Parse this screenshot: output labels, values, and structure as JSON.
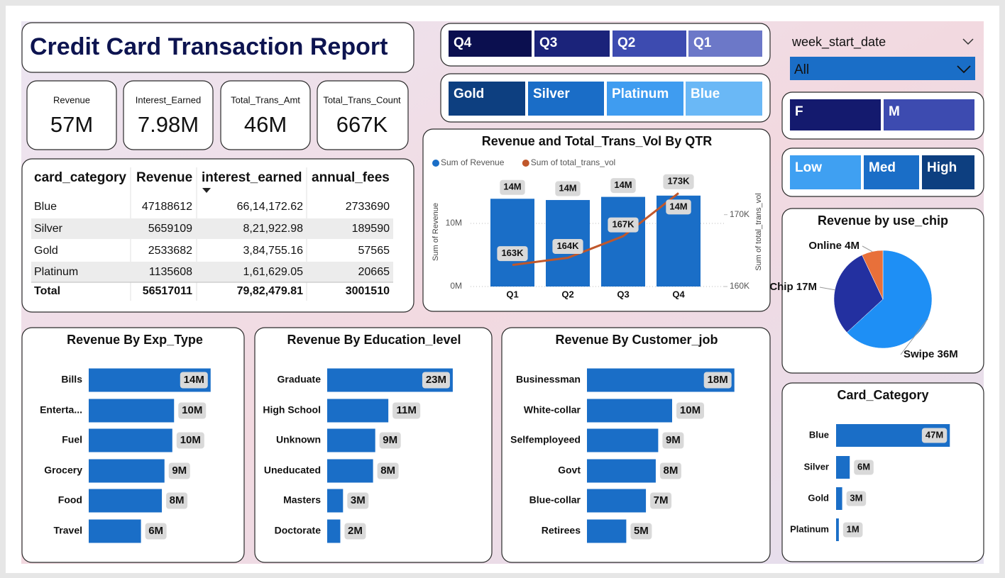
{
  "header": {
    "title": "Credit Card Transaction Report"
  },
  "kpis": [
    {
      "label": "Revenue",
      "value": "57M"
    },
    {
      "label": "Interest_Earned",
      "value": "7.98M"
    },
    {
      "label": "Total_Trans_Amt",
      "value": "46M"
    },
    {
      "label": "Total_Trans_Count",
      "value": "667K"
    }
  ],
  "table": {
    "columns": [
      "card_category",
      "Revenue",
      "interest_earned",
      "annual_fees"
    ],
    "rows": [
      [
        "Blue",
        "47188612",
        "66,14,172.62",
        "2733690"
      ],
      [
        "Silver",
        "5659109",
        "8,21,922.98",
        "189590"
      ],
      [
        "Gold",
        "2533682",
        "3,84,755.16",
        "57565"
      ],
      [
        "Platinum",
        "1135608",
        "1,61,629.05",
        "20665"
      ]
    ],
    "total": [
      "Total",
      "56517011",
      "79,82,479.81",
      "3001510"
    ]
  },
  "slicers": {
    "quarter": [
      {
        "label": "Q4",
        "color": "#0b0f4f"
      },
      {
        "label": "Q3",
        "color": "#1b237a"
      },
      {
        "label": "Q2",
        "color": "#3d4bb0"
      },
      {
        "label": "Q1",
        "color": "#6c78c8"
      }
    ],
    "card_type": [
      {
        "label": "Gold",
        "color": "#0d3f80"
      },
      {
        "label": "Silver",
        "color": "#1a6dc7"
      },
      {
        "label": "Platinum",
        "color": "#3f9cf0"
      },
      {
        "label": "Blue",
        "color": "#6ab8f6"
      }
    ],
    "week": {
      "label": "week_start_date",
      "value": "All"
    },
    "gender": [
      {
        "label": "F",
        "color": "#141a6e"
      },
      {
        "label": "M",
        "color": "#3d4bb0"
      }
    ],
    "income": [
      {
        "label": "Low",
        "color": "#3fa0f2"
      },
      {
        "label": "Med",
        "color": "#1a6ec7"
      },
      {
        "label": "High",
        "color": "#0d3f80"
      }
    ]
  },
  "chart_data": [
    {
      "type": "combo",
      "title": "Revenue and Total_Trans_Vol By QTR",
      "categories": [
        "Q1",
        "Q2",
        "Q3",
        "Q4"
      ],
      "series": [
        {
          "name": "Sum of Revenue",
          "color": "#1a6ec7",
          "values": [
            13.9,
            13.7,
            14.2,
            14.4
          ],
          "value_labels": [
            "14M",
            "14M",
            "14M",
            "14M"
          ]
        },
        {
          "name": "Sum of total_trans_vol",
          "color": "#c0572b",
          "axis": "y2",
          "values": [
            163,
            164,
            167,
            173
          ],
          "value_labels": [
            "163K",
            "164K",
            "167K",
            "173K"
          ]
        }
      ],
      "y_label": "Sum of Revenue",
      "y2_label": "Sum of total_trans_vol",
      "ylim": [
        0,
        17.3
      ],
      "yticks": [
        {
          "value": 0,
          "label": "0M"
        },
        {
          "value": 10,
          "label": "10M"
        }
      ],
      "y2lim": [
        160,
        175.2
      ],
      "y2ticks": [
        {
          "value": 160,
          "label": "160K"
        },
        {
          "value": 170,
          "label": "170K"
        }
      ],
      "grid": true
    },
    {
      "type": "bar",
      "orientation": "horizontal",
      "title": "Revenue By Exp_Type",
      "categories": [
        "Bills",
        "Enterta...",
        "Fuel",
        "Grocery",
        "Food",
        "Travel"
      ],
      "values": [
        14,
        9.8,
        9.6,
        8.7,
        8.4,
        6
      ],
      "value_labels": [
        "14M",
        "10M",
        "10M",
        "9M",
        "8M",
        "6M"
      ],
      "color": "#1a6ec7",
      "xlim": [
        0,
        16.3
      ]
    },
    {
      "type": "bar",
      "orientation": "horizontal",
      "title": "Revenue By Education_level",
      "categories": [
        "Graduate",
        "High School",
        "Unknown",
        "Uneducated",
        "Masters",
        "Doctorate"
      ],
      "values": [
        23,
        11.2,
        8.8,
        8.4,
        2.9,
        2.4
      ],
      "value_labels": [
        "23M",
        "11M",
        "9M",
        "8M",
        "3M",
        "2M"
      ],
      "color": "#1a6ec7",
      "xlim": [
        0,
        26
      ]
    },
    {
      "type": "bar",
      "orientation": "horizontal",
      "title": "Revenue By Customer_job",
      "categories": [
        "Businessman",
        "White-collar",
        "Selfemployeed",
        "Govt",
        "Blue-collar",
        "Retirees"
      ],
      "values": [
        18,
        10.4,
        8.7,
        8.4,
        7.2,
        4.8
      ],
      "value_labels": [
        "18M",
        "10M",
        "9M",
        "8M",
        "7M",
        "5M"
      ],
      "color": "#1a6ec7",
      "xlim": [
        0,
        19.5
      ]
    },
    {
      "type": "pie",
      "title": "Revenue by use_chip",
      "categories": [
        "Swipe",
        "Chip",
        "Online"
      ],
      "values": [
        36,
        17,
        4
      ],
      "value_labels": [
        "36M",
        "17M",
        "4M"
      ],
      "colors": [
        "#1e8ff5",
        "#2330a0",
        "#e8703a"
      ]
    },
    {
      "type": "bar",
      "orientation": "horizontal",
      "title": "Card_Category",
      "categories": [
        "Blue",
        "Silver",
        "Gold",
        "Platinum"
      ],
      "values": [
        47.19,
        5.66,
        2.53,
        1.14
      ],
      "value_labels": [
        "47M",
        "6M",
        "3M",
        "1M"
      ],
      "color": "#1a6ec7",
      "xlim": [
        0,
        53
      ]
    }
  ]
}
